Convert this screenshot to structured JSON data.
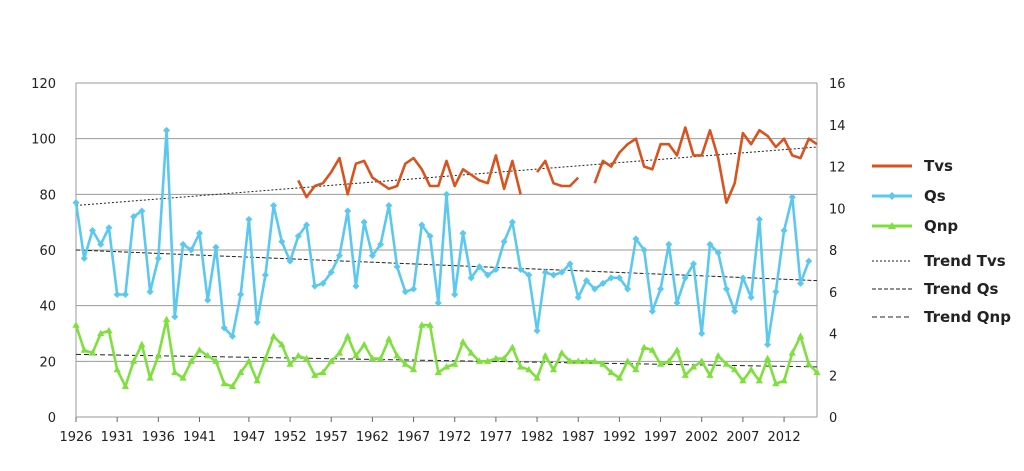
{
  "chart_data": {
    "type": "line",
    "title": "",
    "xlabel": "",
    "ylabel_left": "",
    "ylabel_right": "",
    "xlim": [
      1926,
      2016
    ],
    "ylim_left": [
      0,
      120
    ],
    "ylim_right": [
      0,
      16
    ],
    "y_ticks_left": [
      0,
      20,
      40,
      60,
      80,
      100,
      120
    ],
    "y_ticks_right": [
      0,
      2,
      4,
      6,
      8,
      10,
      12,
      14,
      16
    ],
    "x_ticks": [
      "1926",
      "1931",
      "1936",
      "1941",
      "1947",
      "1952",
      "1957",
      "1962",
      "1967",
      "1972",
      "1977",
      "1982",
      "1987",
      "1992",
      "1997",
      "2002",
      "2007",
      "2012"
    ],
    "grid": "horizontal",
    "legend_position": "right",
    "colors": {
      "Tvs": "#d9531e",
      "Qs": "#5bc8ef",
      "Qnp": "#7ee03c",
      "trend": "#222222"
    },
    "series": [
      {
        "name": "Tvs",
        "axis": "left",
        "marker": "none",
        "points": [
          [
            1953,
            85
          ],
          [
            1954,
            79
          ],
          [
            1955,
            83
          ],
          [
            1956,
            84
          ],
          [
            1957,
            88
          ],
          [
            1958,
            93
          ],
          [
            1959,
            80
          ],
          [
            1960,
            91
          ],
          [
            1961,
            92
          ],
          [
            1962,
            86
          ],
          [
            1963,
            84
          ],
          [
            1964,
            82
          ],
          [
            1965,
            83
          ],
          [
            1966,
            91
          ],
          [
            1967,
            93
          ],
          [
            1968,
            89
          ],
          [
            1969,
            83
          ],
          [
            1970,
            83
          ],
          [
            1971,
            92
          ],
          [
            1972,
            83
          ],
          [
            1973,
            89
          ],
          [
            1974,
            87
          ],
          [
            1975,
            85
          ],
          [
            1976,
            84
          ],
          [
            1977,
            94
          ],
          [
            1978,
            82
          ],
          [
            1979,
            92
          ],
          [
            1980,
            80
          ],
          null,
          [
            1982,
            88
          ],
          [
            1983,
            92
          ],
          [
            1984,
            84
          ],
          [
            1985,
            83
          ],
          [
            1986,
            83
          ],
          [
            1987,
            86
          ],
          null,
          [
            1989,
            84
          ],
          [
            1990,
            92
          ],
          [
            1991,
            90
          ],
          [
            1992,
            95
          ],
          [
            1993,
            98
          ],
          [
            1994,
            100
          ],
          [
            1995,
            90
          ],
          [
            1996,
            89
          ],
          [
            1997,
            98
          ],
          [
            1998,
            98
          ],
          [
            1999,
            94
          ],
          [
            2000,
            104
          ],
          [
            2001,
            94
          ],
          [
            2002,
            94
          ],
          [
            2003,
            103
          ],
          [
            2004,
            93
          ],
          [
            2005,
            77
          ],
          [
            2006,
            84
          ],
          [
            2007,
            102
          ],
          [
            2008,
            98
          ],
          [
            2009,
            103
          ],
          [
            2010,
            101
          ],
          [
            2011,
            97
          ],
          [
            2012,
            100
          ],
          [
            2013,
            94
          ],
          [
            2014,
            93
          ],
          [
            2015,
            100
          ],
          [
            2016,
            98
          ]
        ]
      },
      {
        "name": "Qs",
        "axis": "left",
        "marker": "diamond",
        "points": [
          [
            1926,
            77
          ],
          [
            1927,
            57
          ],
          [
            1928,
            67
          ],
          [
            1929,
            62
          ],
          [
            1930,
            68
          ],
          [
            1931,
            44
          ],
          [
            1932,
            44
          ],
          [
            1933,
            72
          ],
          [
            1934,
            74
          ],
          [
            1935,
            45
          ],
          [
            1936,
            57
          ],
          [
            1937,
            103
          ],
          [
            1938,
            36
          ],
          [
            1939,
            62
          ],
          [
            1940,
            60
          ],
          [
            1941,
            66
          ],
          [
            1942,
            42
          ],
          [
            1943,
            61
          ],
          [
            1944,
            32
          ],
          [
            1945,
            29
          ],
          [
            1946,
            44
          ],
          [
            1947,
            71
          ],
          [
            1948,
            34
          ],
          [
            1949,
            51
          ],
          [
            1950,
            76
          ],
          [
            1951,
            63
          ],
          [
            1952,
            56
          ],
          [
            1953,
            65
          ],
          [
            1954,
            69
          ],
          [
            1955,
            47
          ],
          [
            1956,
            48
          ],
          [
            1957,
            52
          ],
          [
            1958,
            58
          ],
          [
            1959,
            74
          ],
          [
            1960,
            47
          ],
          [
            1961,
            70
          ],
          [
            1962,
            58
          ],
          [
            1963,
            62
          ],
          [
            1964,
            76
          ],
          [
            1965,
            54
          ],
          [
            1966,
            45
          ],
          [
            1967,
            46
          ],
          [
            1968,
            69
          ],
          [
            1969,
            65
          ],
          [
            1970,
            41
          ],
          [
            1971,
            80
          ],
          [
            1972,
            44
          ],
          [
            1973,
            66
          ],
          [
            1974,
            50
          ],
          [
            1975,
            54
          ],
          [
            1976,
            51
          ],
          [
            1977,
            53
          ],
          [
            1978,
            63
          ],
          [
            1979,
            70
          ],
          [
            1980,
            53
          ],
          [
            1981,
            51
          ],
          [
            1982,
            31
          ],
          [
            1983,
            52
          ],
          [
            1984,
            51
          ],
          [
            1985,
            52
          ],
          [
            1986,
            55
          ],
          [
            1987,
            43
          ],
          [
            1988,
            49
          ],
          [
            1989,
            46
          ],
          [
            1990,
            48
          ],
          [
            1991,
            50
          ],
          [
            1992,
            50
          ],
          [
            1993,
            46
          ],
          [
            1994,
            64
          ],
          [
            1995,
            60
          ],
          [
            1996,
            38
          ],
          [
            1997,
            46
          ],
          [
            1998,
            62
          ],
          [
            1999,
            41
          ],
          [
            2000,
            50
          ],
          [
            2001,
            55
          ],
          [
            2002,
            30
          ],
          [
            2003,
            62
          ],
          [
            2004,
            59
          ],
          [
            2005,
            46
          ],
          [
            2006,
            38
          ],
          [
            2007,
            50
          ],
          [
            2008,
            43
          ],
          [
            2009,
            71
          ],
          [
            2010,
            26
          ],
          [
            2011,
            45
          ],
          [
            2012,
            67
          ],
          [
            2013,
            79
          ],
          [
            2014,
            48
          ],
          [
            2015,
            56
          ]
        ]
      },
      {
        "name": "Qnp",
        "axis": "left",
        "marker": "triangle",
        "points": [
          [
            1926,
            33
          ],
          [
            1927,
            24
          ],
          [
            1928,
            23
          ],
          [
            1929,
            30
          ],
          [
            1930,
            31
          ],
          [
            1931,
            17
          ],
          [
            1932,
            11
          ],
          [
            1933,
            20
          ],
          [
            1934,
            26
          ],
          [
            1935,
            14
          ],
          [
            1936,
            22
          ],
          [
            1937,
            35
          ],
          [
            1938,
            16
          ],
          [
            1939,
            14
          ],
          [
            1940,
            20
          ],
          [
            1941,
            24
          ],
          [
            1942,
            22
          ],
          [
            1943,
            20
          ],
          [
            1944,
            12
          ],
          [
            1945,
            11
          ],
          [
            1946,
            16
          ],
          [
            1947,
            20
          ],
          [
            1948,
            13
          ],
          [
            1949,
            21
          ],
          [
            1950,
            29
          ],
          [
            1951,
            26
          ],
          [
            1952,
            19
          ],
          [
            1953,
            22
          ],
          [
            1954,
            21
          ],
          [
            1955,
            15
          ],
          [
            1956,
            16
          ],
          [
            1957,
            20
          ],
          [
            1958,
            23
          ],
          [
            1959,
            29
          ],
          [
            1960,
            22
          ],
          [
            1961,
            26
          ],
          [
            1962,
            21
          ],
          [
            1963,
            21
          ],
          [
            1964,
            28
          ],
          [
            1965,
            22
          ],
          [
            1966,
            19
          ],
          [
            1967,
            17
          ],
          [
            1968,
            33
          ],
          [
            1969,
            33
          ],
          [
            1970,
            16
          ],
          [
            1971,
            18
          ],
          [
            1972,
            19
          ],
          [
            1973,
            27
          ],
          [
            1974,
            23
          ],
          [
            1975,
            20
          ],
          [
            1976,
            20
          ],
          [
            1977,
            21
          ],
          [
            1978,
            21
          ],
          [
            1979,
            25
          ],
          [
            1980,
            18
          ],
          [
            1981,
            17
          ],
          [
            1982,
            14
          ],
          [
            1983,
            22
          ],
          [
            1984,
            17
          ],
          [
            1985,
            23
          ],
          [
            1986,
            20
          ],
          [
            1987,
            20
          ],
          [
            1988,
            20
          ],
          [
            1989,
            20
          ],
          [
            1990,
            19
          ],
          [
            1991,
            16
          ],
          [
            1992,
            14
          ],
          [
            1993,
            20
          ],
          [
            1994,
            17
          ],
          [
            1995,
            25
          ],
          [
            1996,
            24
          ],
          [
            1997,
            19
          ],
          [
            1998,
            20
          ],
          [
            1999,
            24
          ],
          [
            2000,
            15
          ],
          [
            2001,
            18
          ],
          [
            2002,
            20
          ],
          [
            2003,
            15
          ],
          [
            2004,
            22
          ],
          [
            2005,
            19
          ],
          [
            2006,
            17
          ],
          [
            2007,
            13
          ],
          [
            2008,
            17
          ],
          [
            2009,
            13
          ],
          [
            2010,
            21
          ],
          [
            2011,
            12
          ],
          [
            2012,
            13
          ],
          [
            2013,
            23
          ],
          [
            2014,
            29
          ],
          [
            2015,
            19
          ],
          [
            2016,
            16
          ]
        ]
      }
    ],
    "trends": [
      {
        "name": "Trend Tvs",
        "axis": "left",
        "dash": "2,2",
        "from": [
          1926,
          76
        ],
        "to": [
          2016,
          97
        ]
      },
      {
        "name": "Trend Qs",
        "axis": "left",
        "dash": "4,2",
        "from": [
          1926,
          60
        ],
        "to": [
          2016,
          49
        ]
      },
      {
        "name": "Trend Qnp",
        "axis": "left",
        "dash": "5,3",
        "from": [
          1926,
          22.5
        ],
        "to": [
          2016,
          18
        ]
      }
    ]
  }
}
